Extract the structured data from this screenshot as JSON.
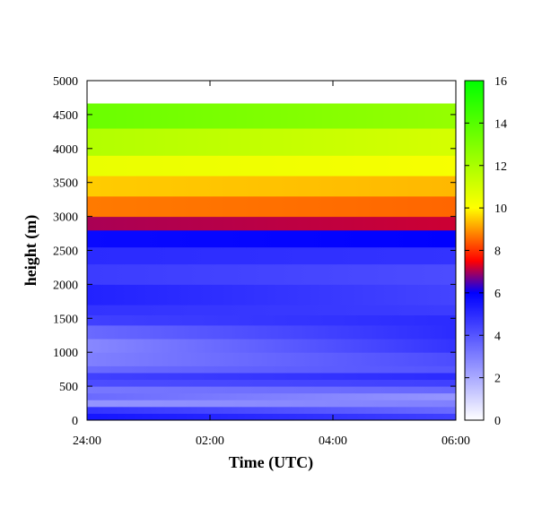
{
  "chart_data": {
    "type": "heatmap",
    "title": "",
    "xlabel": "Time (UTC)",
    "ylabel": "height (m)",
    "x_ticks": [
      "24:00",
      "02:00",
      "04:00",
      "06:00"
    ],
    "y_ticks": [
      "0",
      "500",
      "1000",
      "1500",
      "2000",
      "2500",
      "3000",
      "3500",
      "4000",
      "4500",
      "5000"
    ],
    "ylim": [
      0,
      5000
    ],
    "colorbar": {
      "ticks": [
        "0",
        "2",
        "4",
        "6",
        "8",
        "10",
        "12",
        "14",
        "16"
      ],
      "range": [
        0,
        16
      ],
      "colors": [
        {
          "value": 0,
          "color": "#ffffff"
        },
        {
          "value": 6,
          "color": "#0000ff"
        },
        {
          "value": 7.5,
          "color": "#ff0000"
        },
        {
          "value": 10,
          "color": "#ffff00"
        },
        {
          "value": 16,
          "color": "#00ff00"
        }
      ]
    },
    "layers": [
      {
        "bottom": 0,
        "top": 100,
        "start": 5.5,
        "end": 4.5
      },
      {
        "bottom": 100,
        "top": 200,
        "start": 4.8,
        "end": 3.5
      },
      {
        "bottom": 200,
        "top": 300,
        "start": 2.5,
        "end": 3.0
      },
      {
        "bottom": 300,
        "top": 400,
        "start": 3.5,
        "end": 2.5
      },
      {
        "bottom": 400,
        "top": 500,
        "start": 3.2,
        "end": 3.6
      },
      {
        "bottom": 500,
        "top": 600,
        "start": 4.2,
        "end": 4.5
      },
      {
        "bottom": 600,
        "top": 700,
        "start": 4.5,
        "end": 5.0
      },
      {
        "bottom": 700,
        "top": 800,
        "start": 3.5,
        "end": 4.0
      },
      {
        "bottom": 800,
        "top": 1000,
        "start": 3.0,
        "end": 4.2
      },
      {
        "bottom": 1000,
        "top": 1200,
        "start": 2.8,
        "end": 4.8
      },
      {
        "bottom": 1200,
        "top": 1400,
        "start": 3.5,
        "end": 5.0
      },
      {
        "bottom": 1400,
        "top": 1550,
        "start": 4.5,
        "end": 5.0
      },
      {
        "bottom": 1550,
        "top": 1700,
        "start": 4.8,
        "end": 4.6
      },
      {
        "bottom": 1700,
        "top": 2000,
        "start": 5.2,
        "end": 4.4
      },
      {
        "bottom": 2000,
        "top": 2300,
        "start": 4.6,
        "end": 4.2
      },
      {
        "bottom": 2300,
        "top": 2550,
        "start": 5.0,
        "end": 4.8
      },
      {
        "bottom": 2550,
        "top": 2800,
        "start": 5.8,
        "end": 6.0
      },
      {
        "bottom": 2800,
        "top": 3000,
        "start": 7.0,
        "end": 7.2
      },
      {
        "bottom": 3000,
        "top": 3300,
        "start": 8.7,
        "end": 8.5
      },
      {
        "bottom": 3300,
        "top": 3600,
        "start": 9.5,
        "end": 9.3
      },
      {
        "bottom": 3600,
        "top": 3900,
        "start": 10.5,
        "end": 10.2
      },
      {
        "bottom": 3900,
        "top": 4300,
        "start": 11.8,
        "end": 11.0
      },
      {
        "bottom": 4300,
        "top": 4670,
        "start": 13.5,
        "end": 12.5
      },
      {
        "bottom": 4670,
        "top": 5000,
        "start": 0,
        "end": 0
      }
    ]
  }
}
